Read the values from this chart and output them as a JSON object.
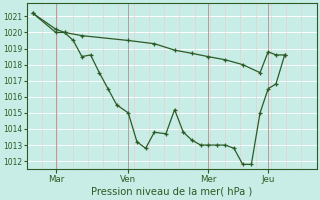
{
  "background_color": "#c8ece6",
  "grid_color_h": "#ffffff",
  "grid_color_v": "#e8d0d0",
  "line_color": "#2a5c25",
  "xlabel": "Pression niveau de la mer( hPa )",
  "ylim": [
    1011.5,
    1021.8
  ],
  "xlim": [
    -0.5,
    9.5
  ],
  "yticks": [
    1012,
    1013,
    1014,
    1015,
    1016,
    1017,
    1018,
    1019,
    1020,
    1021
  ],
  "xtick_labels": [
    "Mar",
    "Ven",
    "Mer",
    "Jeu"
  ],
  "xtick_positions": [
    0.5,
    3.0,
    5.75,
    7.83
  ],
  "vline_positions": [
    0.5,
    3.0,
    5.75,
    7.83
  ],
  "series1_x": [
    -0.3,
    0.5,
    0.8,
    1.1,
    1.4,
    1.7,
    2.0,
    2.3,
    2.6,
    3.0,
    3.3,
    3.6,
    3.9,
    4.3,
    4.6,
    4.9,
    5.2,
    5.5,
    5.75,
    6.05,
    6.35,
    6.65,
    6.95,
    7.25,
    7.55,
    7.83,
    8.1,
    8.4
  ],
  "series1_y": [
    1021.2,
    1020.2,
    1020.0,
    1019.5,
    1018.5,
    1018.6,
    1017.5,
    1016.5,
    1015.5,
    1015.0,
    1013.2,
    1012.8,
    1013.8,
    1013.7,
    1015.2,
    1013.8,
    1013.3,
    1013.0,
    1013.0,
    1013.0,
    1013.0,
    1012.8,
    1011.8,
    1011.8,
    1015.0,
    1016.5,
    1016.8,
    1018.6
  ],
  "series2_x": [
    -0.3,
    0.5,
    0.8,
    1.4,
    3.0,
    3.9,
    4.6,
    5.2,
    5.75,
    6.35,
    6.95,
    7.55,
    7.83,
    8.1,
    8.4
  ],
  "series2_y": [
    1021.2,
    1020.0,
    1020.0,
    1019.8,
    1019.5,
    1019.3,
    1018.9,
    1018.7,
    1018.5,
    1018.3,
    1018.0,
    1017.5,
    1018.8,
    1018.6,
    1018.6
  ]
}
